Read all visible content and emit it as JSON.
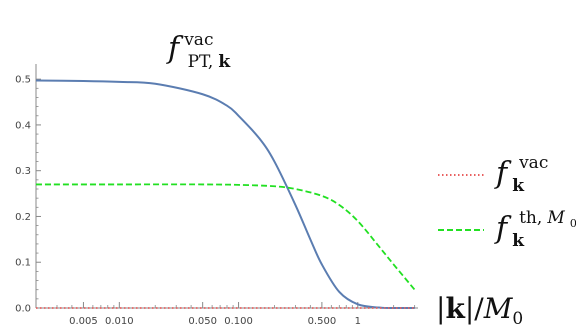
{
  "chart_data": {
    "type": "line",
    "title": {
      "base": "f",
      "superscript": "vac",
      "subscript_roman": "PT,",
      "subscript_bold": "k"
    },
    "xlabel": {
      "bar_left": "|",
      "bold": "k",
      "bar_right": "|",
      "slash": "/",
      "italic": "M",
      "sub": "0"
    },
    "x_scale": "log",
    "xlim": [
      0.002,
      3.2
    ],
    "ylim": [
      0,
      0.52
    ],
    "x_ticks": [
      0.005,
      0.01,
      0.05,
      0.1,
      0.5,
      1
    ],
    "x_tick_labels": [
      "0.005",
      "0.010",
      "0.050",
      "0.100",
      "0.500",
      "1"
    ],
    "y_ticks": [
      0,
      0.1,
      0.2,
      0.3,
      0.4,
      0.5
    ],
    "y_tick_labels": [
      "0.0",
      "0.1",
      "0.2",
      "0.3",
      "0.4",
      "0.5"
    ],
    "grid": false,
    "legend_position": "right",
    "series": [
      {
        "id": "pt",
        "color": "#5b7db1",
        "style": "solid",
        "x": [
          0.002,
          0.005,
          0.01,
          0.02,
          0.05,
          0.08,
          0.1,
          0.15,
          0.2,
          0.3,
          0.4,
          0.5,
          0.7,
          1.0,
          1.5,
          2.0,
          3.0
        ],
        "y": [
          0.497,
          0.496,
          0.494,
          0.49,
          0.467,
          0.442,
          0.42,
          0.37,
          0.32,
          0.225,
          0.15,
          0.095,
          0.035,
          0.008,
          0.001,
          0.0,
          0.0
        ]
      },
      {
        "id": "th",
        "color": "#22e022",
        "style": "dashed",
        "x": [
          0.002,
          0.01,
          0.05,
          0.1,
          0.2,
          0.3,
          0.5,
          0.7,
          1.0,
          1.5,
          2.0,
          3.0
        ],
        "y": [
          0.27,
          0.27,
          0.27,
          0.269,
          0.266,
          0.26,
          0.245,
          0.225,
          0.19,
          0.135,
          0.095,
          0.04
        ]
      },
      {
        "id": "vac",
        "color": "#e86060",
        "style": "dotted",
        "x": [
          0.002,
          3.0
        ],
        "y": [
          0.0,
          0.0
        ]
      }
    ],
    "legend": [
      {
        "series": "vac",
        "base": "f",
        "bold_sub": "k",
        "sup": "vac",
        "sup_italic": "",
        "sup_sub": ""
      },
      {
        "series": "th",
        "base": "f",
        "bold_sub": "k",
        "sup": "th,",
        "sup_italic": "M",
        "sup_sub": "0"
      }
    ]
  }
}
